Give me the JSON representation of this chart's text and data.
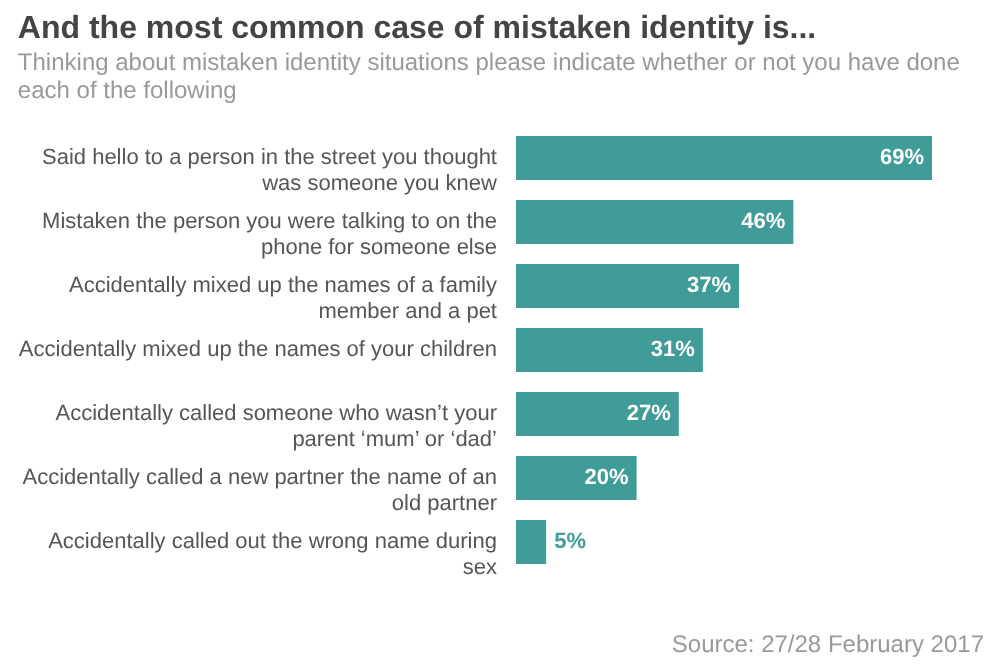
{
  "chart_data": {
    "type": "bar",
    "orientation": "horizontal",
    "title": "And the most common case of mistaken identity is...",
    "subtitle": "Thinking about mistaken identity situations please indicate whether or not you have done each of the following",
    "categories": [
      "Said hello to a person in the street you thought was someone you knew",
      "Mistaken the person you were talking to on the phone for someone else",
      "Accidentally mixed up the names of a family member and a pet",
      "Accidentally mixed up the names of your children",
      "Accidentally called someone who wasn’t your parent ‘mum’ or ‘dad’",
      "Accidentally called a new partner the name of an old partner",
      "Accidentally called out the wrong name during sex"
    ],
    "values": [
      69,
      46,
      37,
      31,
      27,
      20,
      5
    ],
    "value_labels": [
      "69%",
      "46%",
      "37%",
      "31%",
      "27%",
      "20%",
      "5%"
    ],
    "color": "#3f9c98",
    "annotations": [
      "Source: 27/28 February 2017"
    ]
  }
}
